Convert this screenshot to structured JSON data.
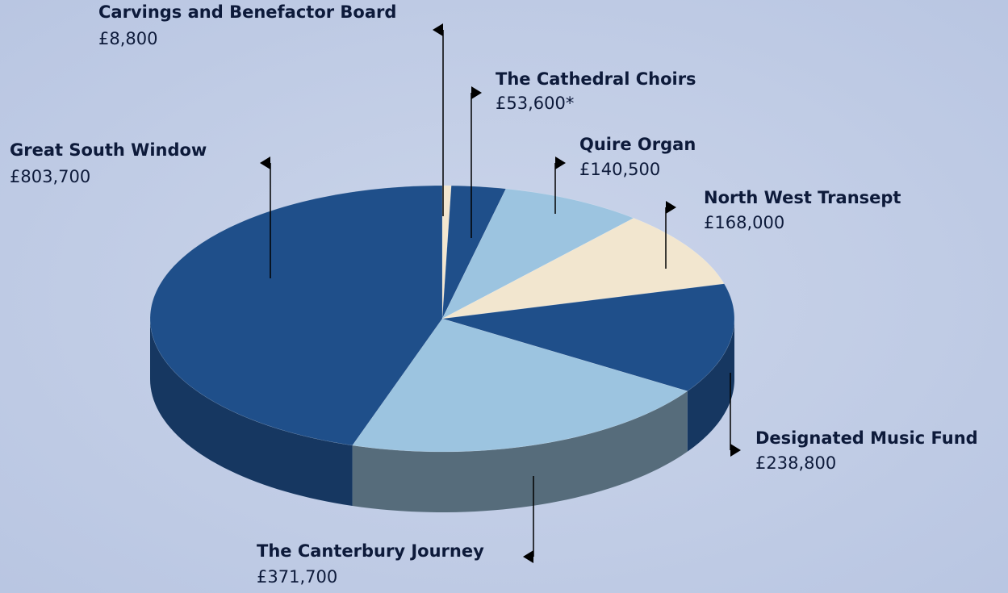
{
  "chart_data": {
    "type": "pie",
    "categories": [
      "Carvings and Benefactor Board",
      "The Cathedral Choirs",
      "Quire Organ",
      "North West Transept",
      "Designated Music Fund",
      "The Canterbury Journey",
      "Great South Window"
    ],
    "values": [
      8800,
      53600,
      140500,
      168000,
      238800,
      371700,
      803700
    ],
    "value_labels": [
      "£8,800",
      "£53,600*",
      "£140,500",
      "£168,000",
      "£238,800",
      "£371,700",
      "£803,700"
    ],
    "colors": [
      "#f2e6cf",
      "#1f4f8a",
      "#9cc4e0",
      "#f2e6cf",
      "#1f4f8a",
      "#9cc4e0",
      "#1f4f8a"
    ]
  }
}
